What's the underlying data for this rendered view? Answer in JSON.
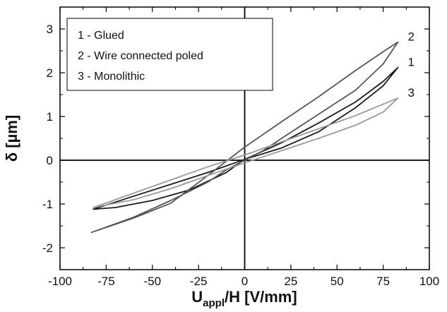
{
  "chart_data": {
    "type": "line",
    "xlabel_main": "U",
    "xlabel_sub": "appl",
    "xlabel_rest": "/H [V/mm]",
    "ylabel": "δ [µm]",
    "xlim": [
      -100,
      100
    ],
    "ylim": [
      -2.5,
      3.5
    ],
    "x_ticks": [
      -100,
      -75,
      -50,
      -25,
      0,
      25,
      50,
      75,
      100
    ],
    "y_ticks": [
      -2,
      -1,
      0,
      1,
      2,
      3
    ],
    "legend": {
      "placement": "top-left",
      "entries": [
        "1 - Glued",
        "2 - Wire connected poled",
        "3 - Monolithic"
      ]
    },
    "series": [
      {
        "name": "1 - Glued",
        "label": "1",
        "color": "#1a1a1a",
        "upper": [
          [
            -82,
            -1.12
          ],
          [
            -60,
            -0.82
          ],
          [
            -40,
            -0.55
          ],
          [
            -20,
            -0.28
          ],
          [
            0,
            0.02
          ],
          [
            20,
            0.4
          ],
          [
            40,
            0.85
          ],
          [
            60,
            1.33
          ],
          [
            75,
            1.8
          ],
          [
            83,
            2.12
          ]
        ],
        "lower": [
          [
            -82,
            -1.12
          ],
          [
            -70,
            -1.08
          ],
          [
            -50,
            -0.92
          ],
          [
            -30,
            -0.68
          ],
          [
            -10,
            -0.28
          ],
          [
            0,
            0.02
          ],
          [
            20,
            0.28
          ],
          [
            40,
            0.65
          ],
          [
            60,
            1.2
          ],
          [
            75,
            1.7
          ],
          [
            83,
            2.12
          ]
        ]
      },
      {
        "name": "2 - Wire connected poled",
        "label": "2",
        "color": "#555555",
        "upper": [
          [
            -83,
            -1.65
          ],
          [
            -60,
            -1.32
          ],
          [
            -40,
            -0.98
          ],
          [
            -20,
            -0.35
          ],
          [
            0,
            0.3
          ],
          [
            20,
            0.88
          ],
          [
            40,
            1.45
          ],
          [
            60,
            2.05
          ],
          [
            75,
            2.48
          ],
          [
            83,
            2.7
          ]
        ],
        "lower": [
          [
            -83,
            -1.65
          ],
          [
            -60,
            -1.3
          ],
          [
            -40,
            -0.92
          ],
          [
            -20,
            -0.5
          ],
          [
            -10,
            -0.22
          ],
          [
            0,
            0.0
          ],
          [
            10,
            0.22
          ],
          [
            20,
            0.5
          ],
          [
            40,
            1.05
          ],
          [
            60,
            1.6
          ],
          [
            75,
            2.2
          ],
          [
            83,
            2.7
          ]
        ]
      },
      {
        "name": "3 - Monolithic",
        "label": "3",
        "color": "#9a9a9a",
        "upper": [
          [
            -82,
            -1.08
          ],
          [
            -60,
            -0.75
          ],
          [
            -40,
            -0.45
          ],
          [
            -20,
            -0.15
          ],
          [
            0,
            0.12
          ],
          [
            20,
            0.42
          ],
          [
            40,
            0.72
          ],
          [
            60,
            1.02
          ],
          [
            75,
            1.28
          ],
          [
            83,
            1.42
          ]
        ],
        "lower": [
          [
            -82,
            -1.08
          ],
          [
            -60,
            -0.9
          ],
          [
            -40,
            -0.65
          ],
          [
            -20,
            -0.35
          ],
          [
            0,
            -0.06
          ],
          [
            20,
            0.22
          ],
          [
            40,
            0.5
          ],
          [
            60,
            0.8
          ],
          [
            75,
            1.1
          ],
          [
            83,
            1.42
          ]
        ]
      }
    ]
  }
}
